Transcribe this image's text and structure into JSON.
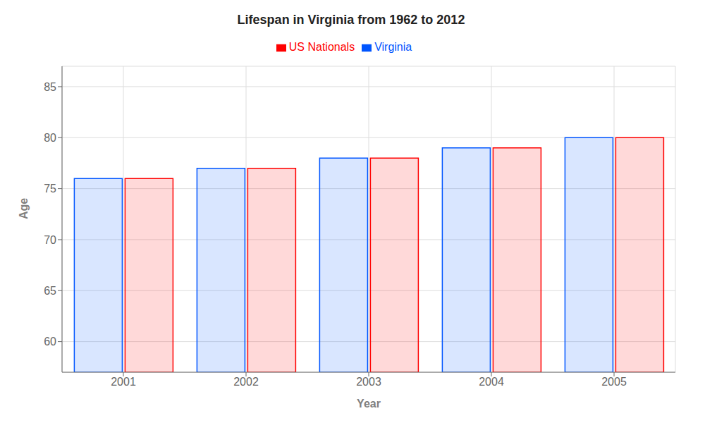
{
  "chart_data": {
    "type": "bar",
    "title": "Lifespan in Virginia from 1962 to 2012",
    "x_label": "Year",
    "y_label": "Age",
    "categories": [
      "2001",
      "2002",
      "2003",
      "2004",
      "2005"
    ],
    "series": [
      {
        "name": "Virginia",
        "color": "#0055ff",
        "values": [
          76,
          77,
          78,
          79,
          80
        ]
      },
      {
        "name": "US Nationals",
        "color": "#ff0000",
        "values": [
          76,
          77,
          78,
          79,
          80
        ]
      }
    ],
    "ylim": [
      57,
      87
    ],
    "yticks": [
      60,
      65,
      70,
      75,
      80,
      85
    ],
    "grid": true,
    "legend": "top"
  }
}
